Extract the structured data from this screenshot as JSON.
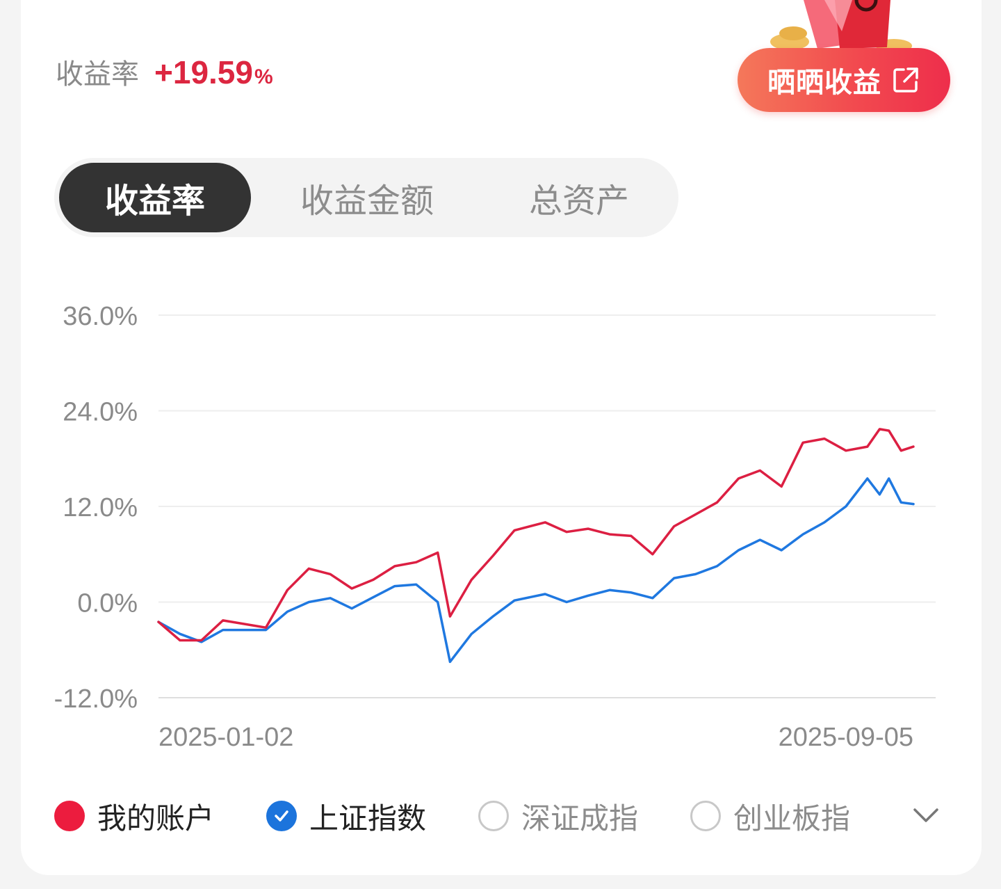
{
  "summary": {
    "label": "收益率",
    "value": "+19.59",
    "unit": "%"
  },
  "share_button": {
    "label": "晒晒收益",
    "icon": "external-link-icon"
  },
  "tabs": [
    {
      "label": "收益率",
      "active": true
    },
    {
      "label": "收益金额",
      "active": false
    },
    {
      "label": "总资产",
      "active": false
    }
  ],
  "legend": [
    {
      "label": "我的账户",
      "state": "filled",
      "color": "#ec1c3e"
    },
    {
      "label": "上证指数",
      "state": "checked",
      "color": "#1c74dc"
    },
    {
      "label": "深证成指",
      "state": "unchecked",
      "color": "#c8c8c8"
    },
    {
      "label": "创业板指",
      "state": "unchecked",
      "color": "#c8c8c8"
    }
  ],
  "more_icon": "chevron-down-icon",
  "colors": {
    "account": "#dc1f42",
    "index": "#1f78e0",
    "accent": "#dc2640"
  },
  "chart_data": {
    "type": "line",
    "ylim": [
      -12,
      36
    ],
    "yticks": [
      36,
      24,
      12,
      0,
      -12
    ],
    "ytick_labels": [
      "36.0%",
      "24.0%",
      "12.0%",
      "0.0%",
      "-12.0%"
    ],
    "x_start_label": "2025-01-02",
    "x_end_label": "2025-09-05",
    "grid": true,
    "x": [
      "2025-01-02",
      "2025-01-09",
      "2025-01-16",
      "2025-01-23",
      "2025-02-06",
      "2025-02-13",
      "2025-02-20",
      "2025-02-27",
      "2025-03-06",
      "2025-03-13",
      "2025-03-20",
      "2025-03-27",
      "2025-04-03",
      "2025-04-07",
      "2025-04-14",
      "2025-04-21",
      "2025-04-28",
      "2025-05-08",
      "2025-05-15",
      "2025-05-22",
      "2025-05-29",
      "2025-06-05",
      "2025-06-12",
      "2025-06-19",
      "2025-06-26",
      "2025-07-03",
      "2025-07-10",
      "2025-07-17",
      "2025-07-24",
      "2025-07-31",
      "2025-08-07",
      "2025-08-14",
      "2025-08-21",
      "2025-08-25",
      "2025-08-28",
      "2025-09-01",
      "2025-09-05"
    ],
    "series": [
      {
        "name": "我的账户",
        "values": [
          -2.5,
          -4.8,
          -4.8,
          -2.3,
          -3.2,
          1.5,
          4.2,
          3.5,
          1.7,
          2.8,
          4.5,
          5.0,
          6.2,
          -1.8,
          2.8,
          5.8,
          9.0,
          10.0,
          8.8,
          9.2,
          8.5,
          8.3,
          6.0,
          9.5,
          11.0,
          12.5,
          15.5,
          16.5,
          14.5,
          20.0,
          20.5,
          19.0,
          19.5,
          21.7,
          21.5,
          19.0,
          19.5
        ]
      },
      {
        "name": "上证指数",
        "values": [
          -2.5,
          -4.0,
          -5.0,
          -3.5,
          -3.5,
          -1.2,
          0.0,
          0.5,
          -0.8,
          0.6,
          2.0,
          2.2,
          0.0,
          -7.5,
          -4.0,
          -1.8,
          0.2,
          1.0,
          0.0,
          0.8,
          1.5,
          1.2,
          0.5,
          3.0,
          3.5,
          4.5,
          6.5,
          7.8,
          6.5,
          8.5,
          10.0,
          12.0,
          15.5,
          13.5,
          15.5,
          12.5,
          12.3
        ]
      }
    ]
  }
}
